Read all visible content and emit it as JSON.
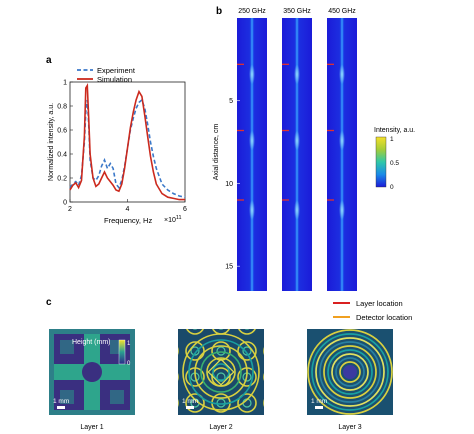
{
  "panels": {
    "a": "a",
    "b": "b",
    "c": "c"
  },
  "chart_data": [
    {
      "type": "line",
      "panel": "a",
      "title": "",
      "xlabel": "Frequency, Hz",
      "x_multiplier": "×10",
      "x_multiplier_exp": "11",
      "ylabel": "Normalized intensity, a.u.",
      "xlim": [
        2,
        6
      ],
      "ylim": [
        0,
        1
      ],
      "xticks": [
        "2",
        "4",
        "6"
      ],
      "yticks": [
        "0",
        "0.2",
        "0.4",
        "0.6",
        "0.8",
        "1"
      ],
      "legend_position": "top-right",
      "series": [
        {
          "name": "Experiment",
          "style": "dashed",
          "color": "#3a78c9",
          "x": [
            2.0,
            2.1,
            2.2,
            2.3,
            2.4,
            2.5,
            2.55,
            2.6,
            2.65,
            2.7,
            2.8,
            2.9,
            3.0,
            3.1,
            3.2,
            3.3,
            3.4,
            3.5,
            3.6,
            3.7,
            3.8,
            3.9,
            4.0,
            4.1,
            4.2,
            4.3,
            4.4,
            4.5,
            4.6,
            4.7,
            4.8,
            4.9,
            5.0,
            5.2,
            5.4,
            5.6,
            5.8,
            6.0
          ],
          "y": [
            0.12,
            0.15,
            0.17,
            0.14,
            0.22,
            0.5,
            0.75,
            0.85,
            0.65,
            0.35,
            0.2,
            0.18,
            0.22,
            0.3,
            0.35,
            0.28,
            0.32,
            0.28,
            0.15,
            0.12,
            0.18,
            0.3,
            0.45,
            0.6,
            0.7,
            0.78,
            0.83,
            0.85,
            0.78,
            0.65,
            0.5,
            0.38,
            0.28,
            0.15,
            0.1,
            0.07,
            0.05,
            0.04
          ]
        },
        {
          "name": "Simulation",
          "style": "solid",
          "color": "#cc2a1e",
          "x": [
            2.0,
            2.1,
            2.2,
            2.3,
            2.4,
            2.5,
            2.55,
            2.6,
            2.65,
            2.7,
            2.8,
            2.9,
            3.0,
            3.1,
            3.2,
            3.3,
            3.4,
            3.5,
            3.6,
            3.7,
            3.8,
            3.9,
            4.0,
            4.1,
            4.2,
            4.3,
            4.4,
            4.5,
            4.6,
            4.7,
            4.8,
            4.9,
            5.0,
            5.2,
            5.4,
            5.6,
            5.8,
            6.0
          ],
          "y": [
            0.1,
            0.14,
            0.16,
            0.12,
            0.18,
            0.55,
            0.95,
            0.97,
            0.7,
            0.4,
            0.2,
            0.13,
            0.15,
            0.2,
            0.25,
            0.2,
            0.17,
            0.14,
            0.1,
            0.09,
            0.15,
            0.28,
            0.45,
            0.62,
            0.75,
            0.85,
            0.92,
            0.88,
            0.72,
            0.55,
            0.38,
            0.25,
            0.15,
            0.07,
            0.04,
            0.03,
            0.02,
            0.02
          ]
        }
      ]
    },
    {
      "type": "heatmap",
      "panel": "b",
      "title": "",
      "columns": [
        "250 GHz",
        "350 GHz",
        "450 GHz"
      ],
      "ylabel": "Axial distance, cm",
      "ylim": [
        0,
        16.5
      ],
      "yticks": [
        5,
        10,
        15
      ],
      "colorbar_label": "Intensity, a.u.",
      "colorbar_ticks": [
        "1",
        "0.5",
        "0"
      ],
      "layer_marks_cm": [
        2.8,
        6.8,
        11.0
      ],
      "colormap": [
        "#1b1bd8",
        "#1c52f0",
        "#1aa3e0",
        "#36c9a0",
        "#a5cd38",
        "#f5e02a"
      ]
    }
  ],
  "panel_c": {
    "legend": [
      {
        "label": "Layer location",
        "color": "#d92020"
      },
      {
        "label": "Detector location",
        "color": "#f0a020"
      }
    ],
    "height_label": "Height (mm)",
    "height_ticks": [
      "1",
      "0"
    ],
    "scale_bar": "1 mm",
    "layers": [
      "Layer 1",
      "Layer 2",
      "Layer 3"
    ]
  }
}
